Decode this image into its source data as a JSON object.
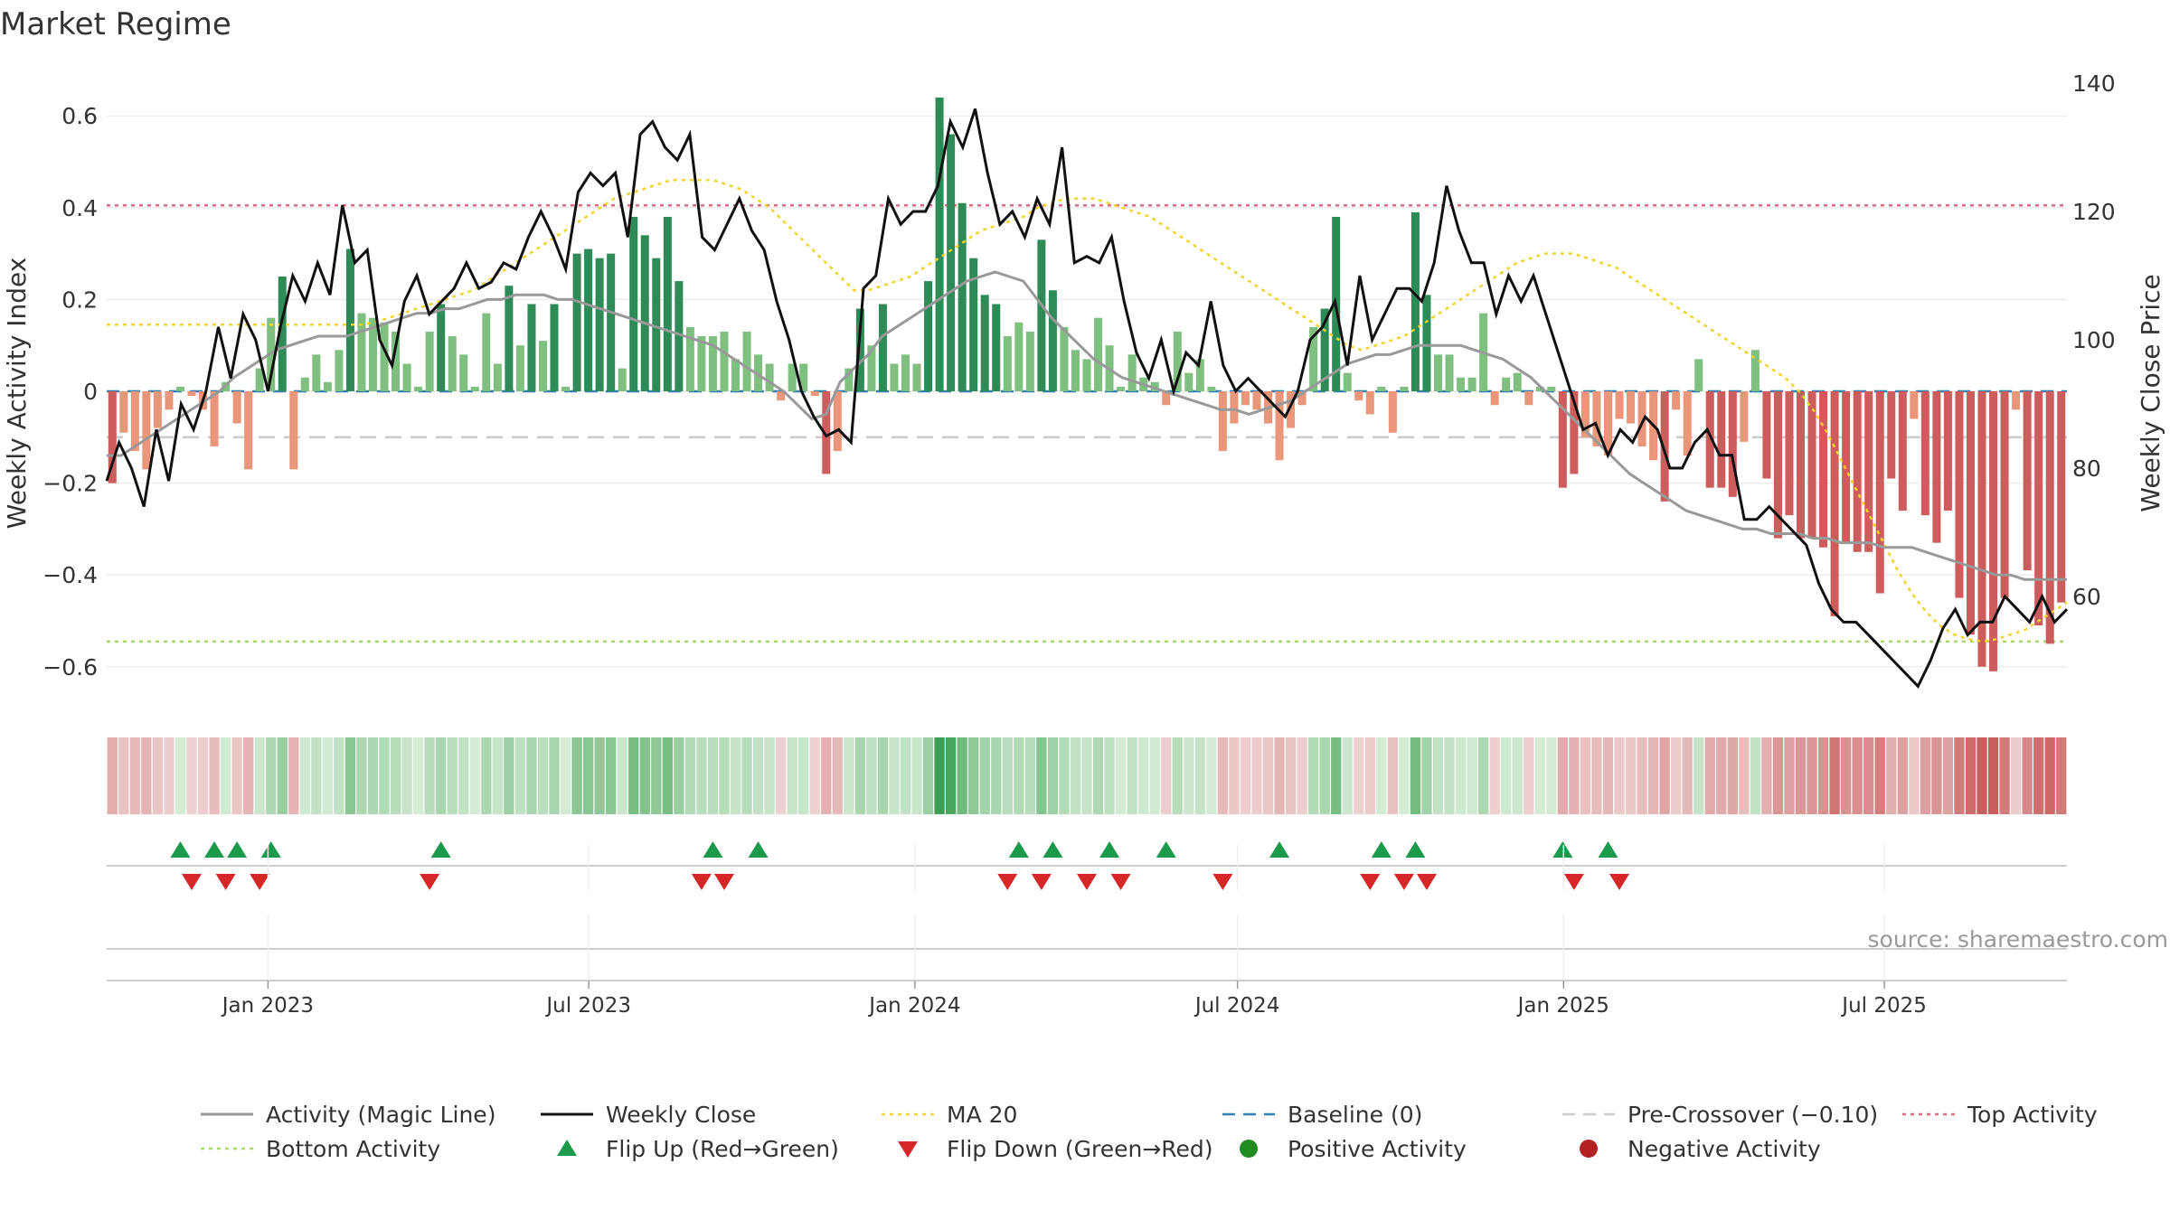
{
  "chart_data": {
    "type": "bar",
    "title": "Market Regime",
    "source": "source: sharemaestro.com",
    "y_left": {
      "label": "Weekly Activity Index",
      "range": [
        -0.7,
        0.7
      ],
      "ticks": [
        -0.6,
        -0.4,
        -0.2,
        0,
        0.2,
        0.4,
        0.6
      ]
    },
    "y_right": {
      "label": "Weekly Close Price",
      "range": [
        45,
        141
      ],
      "ticks": [
        60,
        80,
        100,
        120,
        140
      ]
    },
    "x_ticks": [
      "Jan 2023",
      "Jul 2023",
      "Jan 2024",
      "Jul 2024",
      "Jan 2025",
      "Jul 2025"
    ],
    "x_range": [
      "2022-10-02",
      "2025-10-12"
    ],
    "reference_lines": {
      "top_activity": 0.405,
      "bottom_activity": -0.545,
      "baseline": 0,
      "pre_crossover": -0.1
    },
    "weekly_activity": [
      -0.2,
      -0.09,
      -0.13,
      -0.17,
      -0.08,
      -0.04,
      0.01,
      -0.01,
      -0.04,
      -0.12,
      0.02,
      -0.07,
      -0.17,
      0.05,
      0.16,
      0.25,
      -0.17,
      0.03,
      0.08,
      0.02,
      0.09,
      0.31,
      0.17,
      0.16,
      0.15,
      0.13,
      0.06,
      0.01,
      0.13,
      0.19,
      0.12,
      0.08,
      0.01,
      0.17,
      0.06,
      0.23,
      0.1,
      0.19,
      0.11,
      0.19,
      0.01,
      0.3,
      0.31,
      0.29,
      0.3,
      0.05,
      0.38,
      0.34,
      0.29,
      0.38,
      0.24,
      0.14,
      0.12,
      0.12,
      0.13,
      0.07,
      0.13,
      0.08,
      0.06,
      -0.02,
      0.06,
      0.06,
      -0.01,
      -0.18,
      -0.13,
      0.05,
      0.18,
      0.1,
      0.19,
      0.06,
      0.08,
      0.06,
      0.24,
      0.64,
      0.56,
      0.41,
      0.29,
      0.21,
      0.19,
      0.12,
      0.15,
      0.13,
      0.33,
      0.22,
      0.14,
      0.09,
      0.07,
      0.16,
      0.1,
      0.01,
      0.08,
      0.03,
      0.02,
      -0.03,
      0.13,
      0.04,
      0.07,
      0.01,
      -0.13,
      -0.07,
      -0.03,
      -0.04,
      -0.07,
      -0.15,
      -0.08,
      -0.03,
      0.14,
      0.18,
      0.38,
      0.04,
      -0.02,
      -0.05,
      0.01,
      -0.09,
      0.01,
      0.39,
      0.21,
      0.08,
      0.08,
      0.03,
      0.03,
      0.17,
      -0.03,
      0.03,
      0.04,
      -0.03,
      0.01,
      0.01,
      -0.21,
      -0.18,
      -0.1,
      -0.12,
      -0.14,
      -0.06,
      -0.07,
      -0.12,
      -0.15,
      -0.24,
      -0.04,
      -0.14,
      0.07,
      -0.21,
      -0.21,
      -0.23,
      -0.11,
      0.09,
      -0.19,
      -0.32,
      -0.27,
      -0.32,
      -0.32,
      -0.34,
      -0.49,
      -0.33,
      -0.35,
      -0.35,
      -0.44,
      -0.19,
      -0.26,
      -0.06,
      -0.27,
      -0.33,
      -0.26,
      -0.45,
      -0.53,
      -0.6,
      -0.61,
      -0.45,
      -0.04,
      -0.39,
      -0.51,
      -0.55,
      -0.46
    ],
    "weekly_close": [
      78,
      84,
      80,
      74,
      86,
      78,
      90,
      86,
      92,
      102,
      94,
      104,
      100,
      92,
      102,
      110,
      106,
      112,
      107,
      121,
      112,
      114,
      100,
      96,
      106,
      110,
      104,
      106,
      108,
      112,
      108,
      109,
      112,
      111,
      116,
      120,
      116,
      111,
      123,
      126,
      124,
      126,
      116,
      132,
      134,
      130,
      128,
      132,
      116,
      114,
      118,
      122,
      117,
      114,
      106,
      100,
      92,
      88,
      85,
      86,
      84,
      108,
      110,
      122,
      118,
      120,
      120,
      124,
      134,
      130,
      136,
      126,
      118,
      120,
      116,
      122,
      118,
      130,
      112,
      113,
      112,
      116,
      106,
      98,
      94,
      100,
      92,
      98,
      96,
      106,
      96,
      92,
      94,
      92,
      90,
      88,
      92,
      100,
      102,
      106,
      96,
      110,
      100,
      104,
      108,
      108,
      106,
      112,
      124,
      117,
      112,
      112,
      104,
      110,
      106,
      110,
      104,
      98,
      92,
      86,
      87,
      82,
      86,
      84,
      88,
      86,
      80,
      80,
      84,
      86,
      82,
      82,
      72,
      72,
      74,
      72,
      70,
      68,
      62,
      58,
      56,
      56,
      54,
      52,
      50,
      48,
      46,
      50,
      55,
      58,
      54,
      56,
      56,
      60,
      58,
      56,
      60,
      56,
      58
    ],
    "magic_line": [
      -0.14,
      -0.14,
      -0.12,
      -0.1,
      -0.08,
      -0.06,
      -0.04,
      -0.02,
      0,
      0.03,
      0.05,
      0.07,
      0.09,
      0.1,
      0.11,
      0.12,
      0.12,
      0.12,
      0.13,
      0.14,
      0.15,
      0.16,
      0.17,
      0.17,
      0.18,
      0.18,
      0.19,
      0.2,
      0.2,
      0.21,
      0.21,
      0.21,
      0.2,
      0.2,
      0.19,
      0.18,
      0.17,
      0.16,
      0.15,
      0.14,
      0.13,
      0.12,
      0.11,
      0.1,
      0.08,
      0.06,
      0.04,
      0.02,
      0,
      -0.03,
      -0.06,
      -0.05,
      0.02,
      0.05,
      0.08,
      0.12,
      0.14,
      0.16,
      0.18,
      0.2,
      0.22,
      0.24,
      0.25,
      0.26,
      0.25,
      0.24,
      0.2,
      0.16,
      0.13,
      0.1,
      0.07,
      0.05,
      0.03,
      0.02,
      0.01,
      0,
      -0.01,
      -0.02,
      -0.03,
      -0.04,
      -0.04,
      -0.05,
      -0.04,
      -0.03,
      -0.02,
      0,
      0.02,
      0.04,
      0.06,
      0.07,
      0.08,
      0.08,
      0.09,
      0.1,
      0.1,
      0.1,
      0.1,
      0.09,
      0.08,
      0.07,
      0.05,
      0.03,
      0,
      -0.03,
      -0.06,
      -0.09,
      -0.12,
      -0.15,
      -0.18,
      -0.2,
      -0.22,
      -0.24,
      -0.26,
      -0.27,
      -0.28,
      -0.29,
      -0.3,
      -0.3,
      -0.31,
      -0.31,
      -0.31,
      -0.32,
      -0.32,
      -0.33,
      -0.33,
      -0.33,
      -0.34,
      -0.34,
      -0.34,
      -0.35,
      -0.36,
      -0.37,
      -0.38,
      -0.39,
      -0.4,
      -0.4,
      -0.41,
      -0.41,
      -0.41,
      -0.41
    ],
    "ma20": [
      0.145,
      0.145,
      0.145,
      0.145,
      0.145,
      0.145,
      0.145,
      0.145,
      0.145,
      0.145,
      0.145,
      0.145,
      0.145,
      0.145,
      0.145,
      0.145,
      0.145,
      0.145,
      0.145,
      0.15,
      0.16,
      0.17,
      0.18,
      0.19,
      0.2,
      0.21,
      0.22,
      0.24,
      0.26,
      0.28,
      0.3,
      0.32,
      0.34,
      0.36,
      0.38,
      0.4,
      0.42,
      0.43,
      0.44,
      0.45,
      0.46,
      0.46,
      0.46,
      0.46,
      0.45,
      0.44,
      0.42,
      0.4,
      0.37,
      0.34,
      0.31,
      0.28,
      0.25,
      0.22,
      0.22,
      0.23,
      0.24,
      0.25,
      0.27,
      0.29,
      0.31,
      0.33,
      0.35,
      0.36,
      0.37,
      0.38,
      0.4,
      0.41,
      0.42,
      0.42,
      0.42,
      0.41,
      0.4,
      0.39,
      0.38,
      0.36,
      0.34,
      0.32,
      0.3,
      0.28,
      0.26,
      0.24,
      0.22,
      0.2,
      0.18,
      0.16,
      0.14,
      0.12,
      0.1,
      0.09,
      0.1,
      0.11,
      0.12,
      0.14,
      0.16,
      0.18,
      0.2,
      0.22,
      0.24,
      0.26,
      0.28,
      0.29,
      0.3,
      0.3,
      0.3,
      0.29,
      0.28,
      0.27,
      0.25,
      0.23,
      0.21,
      0.19,
      0.17,
      0.15,
      0.13,
      0.11,
      0.09,
      0.07,
      0.05,
      0.03,
      0,
      -0.04,
      -0.09,
      -0.15,
      -0.21,
      -0.27,
      -0.33,
      -0.39,
      -0.44,
      -0.48,
      -0.51,
      -0.53,
      -0.54,
      -0.545,
      -0.54,
      -0.53,
      -0.52,
      -0.5,
      -0.48,
      -0.46
    ],
    "flip_up_weeks": [
      6,
      9,
      11,
      14,
      29,
      53,
      57,
      80,
      83,
      88,
      93,
      103,
      112,
      115,
      128,
      132
    ],
    "flip_down_weeks": [
      7,
      10,
      13,
      28,
      52,
      54,
      79,
      82,
      86,
      89,
      98,
      111,
      114,
      116,
      129,
      133
    ],
    "regime_strip": "activity heat strip (green = positive, red = negative)",
    "legend": [
      {
        "label": "Activity (Magic Line)",
        "kind": "line",
        "color": "#999999"
      },
      {
        "label": "Weekly Close",
        "kind": "line",
        "color": "#111111"
      },
      {
        "label": "MA 20",
        "kind": "dotted",
        "color": "#f0d42a"
      },
      {
        "label": "Baseline (0)",
        "kind": "dashed",
        "color": "#2f7fb5"
      },
      {
        "label": "Pre-Crossover (−0.10)",
        "kind": "dashed",
        "color": "#cccccc"
      },
      {
        "label": "Top Activity",
        "kind": "dotted",
        "color": "#e26a7e"
      },
      {
        "label": "Bottom Activity",
        "kind": "dotted",
        "color": "#a6d96a"
      },
      {
        "label": "Flip Up (Red→Green)",
        "kind": "tri-up",
        "color": "#1a9a4a"
      },
      {
        "label": "Flip Down (Green→Red)",
        "kind": "tri-down",
        "color": "#d62728"
      },
      {
        "label": "Positive Activity",
        "kind": "dot",
        "color": "#228b22"
      },
      {
        "label": "Negative Activity",
        "kind": "dot",
        "color": "#b22222"
      }
    ]
  }
}
